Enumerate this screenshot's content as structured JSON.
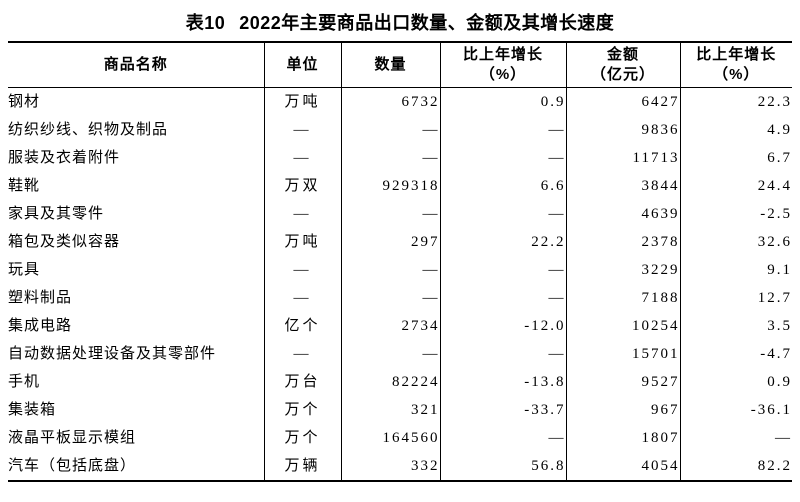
{
  "title": {
    "label": "表10",
    "text": "2022年主要商品出口数量、金额及其增长速度"
  },
  "table": {
    "columns": [
      {
        "key": "name",
        "label": "商品名称",
        "sub": ""
      },
      {
        "key": "unit",
        "label": "单位",
        "sub": ""
      },
      {
        "key": "qty",
        "label": "数量",
        "sub": ""
      },
      {
        "key": "qty_growth",
        "label": "比上年增长",
        "sub": "（%）"
      },
      {
        "key": "value",
        "label": "金额",
        "sub": "（亿元）"
      },
      {
        "key": "value_growth",
        "label": "比上年增长",
        "sub": "（%）"
      }
    ],
    "missing_value_symbol": "—",
    "rows": [
      {
        "name": "钢材",
        "unit": "万吨",
        "qty": "6732",
        "qty_growth": "0.9",
        "value": "6427",
        "value_growth": "22.3"
      },
      {
        "name": "纺织纱线、织物及制品",
        "unit": "—",
        "qty": "—",
        "qty_growth": "—",
        "value": "9836",
        "value_growth": "4.9"
      },
      {
        "name": "服装及衣着附件",
        "unit": "—",
        "qty": "—",
        "qty_growth": "—",
        "value": "11713",
        "value_growth": "6.7"
      },
      {
        "name": "鞋靴",
        "unit": "万双",
        "qty": "929318",
        "qty_growth": "6.6",
        "value": "3844",
        "value_growth": "24.4"
      },
      {
        "name": "家具及其零件",
        "unit": "—",
        "qty": "—",
        "qty_growth": "—",
        "value": "4639",
        "value_growth": "-2.5"
      },
      {
        "name": "箱包及类似容器",
        "unit": "万吨",
        "qty": "297",
        "qty_growth": "22.2",
        "value": "2378",
        "value_growth": "32.6"
      },
      {
        "name": "玩具",
        "unit": "—",
        "qty": "—",
        "qty_growth": "—",
        "value": "3229",
        "value_growth": "9.1"
      },
      {
        "name": "塑料制品",
        "unit": "—",
        "qty": "—",
        "qty_growth": "—",
        "value": "7188",
        "value_growth": "12.7"
      },
      {
        "name": "集成电路",
        "unit": "亿个",
        "qty": "2734",
        "qty_growth": "-12.0",
        "value": "10254",
        "value_growth": "3.5"
      },
      {
        "name": "自动数据处理设备及其零部件",
        "unit": "—",
        "qty": "—",
        "qty_growth": "—",
        "value": "15701",
        "value_growth": "-4.7"
      },
      {
        "name": "手机",
        "unit": "万台",
        "qty": "82224",
        "qty_growth": "-13.8",
        "value": "9527",
        "value_growth": "0.9"
      },
      {
        "name": "集装箱",
        "unit": "万个",
        "qty": "321",
        "qty_growth": "-33.7",
        "value": "967",
        "value_growth": "-36.1"
      },
      {
        "name": "液晶平板显示模组",
        "unit": "万个",
        "qty": "164560",
        "qty_growth": "—",
        "value": "1807",
        "value_growth": "—"
      },
      {
        "name": "汽车（包括底盘）",
        "unit": "万辆",
        "qty": "332",
        "qty_growth": "56.8",
        "value": "4054",
        "value_growth": "82.2"
      }
    ]
  }
}
